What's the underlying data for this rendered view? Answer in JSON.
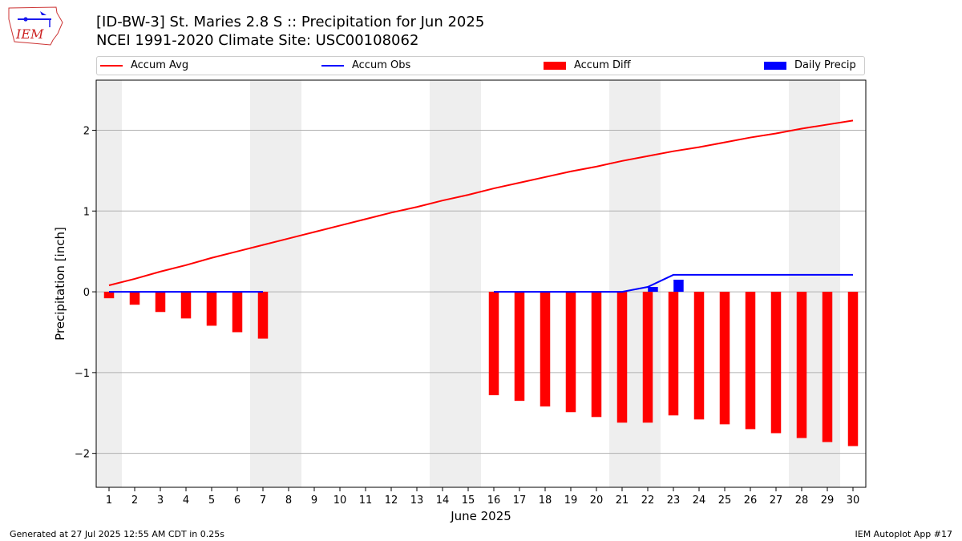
{
  "header": {
    "title_line1": "[ID-BW-3] St. Maries 2.8 S :: Precipitation for Jun 2025",
    "title_line2": "NCEI 1991-2020 Climate Site: USC00108062"
  },
  "logo": {
    "text": "IEM"
  },
  "footer": {
    "left": "Generated at 27 Jul 2025 12:55 AM CDT in 0.25s",
    "right": "IEM Autoplot App #17"
  },
  "legend": [
    {
      "label": "Accum Avg",
      "kind": "line",
      "color": "#ff0000"
    },
    {
      "label": "Accum Obs",
      "kind": "line",
      "color": "#0000ff"
    },
    {
      "label": "Accum Diff",
      "kind": "bar",
      "color": "#ff0000"
    },
    {
      "label": "Daily Precip",
      "kind": "bar",
      "color": "#0000ff"
    }
  ],
  "chart_data": {
    "type": "bar",
    "xlabel": "June 2025",
    "ylabel": "Precipitation [inch]",
    "xlim": [
      0.5,
      30.5
    ],
    "ylim": [
      -2.42,
      2.62
    ],
    "yticks": [
      -2,
      -1,
      0,
      1,
      2
    ],
    "ytick_labels": [
      "−2",
      "−1",
      "0",
      "1",
      "2"
    ],
    "xticks": [
      1,
      2,
      3,
      4,
      5,
      6,
      7,
      8,
      9,
      10,
      11,
      12,
      13,
      14,
      15,
      16,
      17,
      18,
      19,
      20,
      21,
      22,
      23,
      24,
      25,
      26,
      27,
      28,
      29,
      30
    ],
    "grid": "horizontal",
    "weekend_shading": [
      [
        0.5,
        1.5
      ],
      [
        6.5,
        8.5
      ],
      [
        13.5,
        15.5
      ],
      [
        20.5,
        22.5
      ],
      [
        27.5,
        29.5
      ]
    ],
    "colors": {
      "avg": "#ff0000",
      "obs": "#0000ff",
      "diff": "#ff0000",
      "daily": "#0000ff",
      "shade": "#eeeeee"
    },
    "days": [
      1,
      2,
      3,
      4,
      5,
      6,
      7,
      8,
      9,
      10,
      11,
      12,
      13,
      14,
      15,
      16,
      17,
      18,
      19,
      20,
      21,
      22,
      23,
      24,
      25,
      26,
      27,
      28,
      29,
      30
    ],
    "series": [
      {
        "name": "Accum Avg",
        "values": [
          0.08,
          0.16,
          0.25,
          0.33,
          0.42,
          0.5,
          0.58,
          0.66,
          0.74,
          0.82,
          0.9,
          0.98,
          1.05,
          1.13,
          1.2,
          1.28,
          1.35,
          1.42,
          1.49,
          1.55,
          1.62,
          1.68,
          1.74,
          1.79,
          1.85,
          1.91,
          1.96,
          2.02,
          2.07,
          2.12
        ]
      },
      {
        "name": "Accum Obs",
        "values": [
          0,
          0,
          0,
          0,
          0,
          0,
          0,
          null,
          null,
          null,
          null,
          null,
          null,
          null,
          null,
          0,
          0,
          0,
          0,
          0,
          0,
          0.06,
          0.21,
          0.21,
          0.21,
          0.21,
          0.21,
          0.21,
          0.21,
          0.21
        ]
      },
      {
        "name": "Accum Diff",
        "values": [
          -0.08,
          -0.16,
          -0.25,
          -0.33,
          -0.42,
          -0.5,
          -0.58,
          null,
          null,
          null,
          null,
          null,
          null,
          null,
          null,
          -1.28,
          -1.35,
          -1.42,
          -1.49,
          -1.55,
          -1.62,
          -1.62,
          -1.53,
          -1.58,
          -1.64,
          -1.7,
          -1.75,
          -1.81,
          -1.86,
          -1.91
        ]
      },
      {
        "name": "Daily Precip",
        "values": [
          0,
          0,
          0,
          0,
          0,
          0,
          0,
          null,
          null,
          null,
          null,
          null,
          null,
          null,
          null,
          0,
          0,
          0,
          0,
          0,
          0,
          0.06,
          0.15,
          0,
          0,
          0,
          0,
          0,
          0,
          0
        ]
      }
    ]
  }
}
